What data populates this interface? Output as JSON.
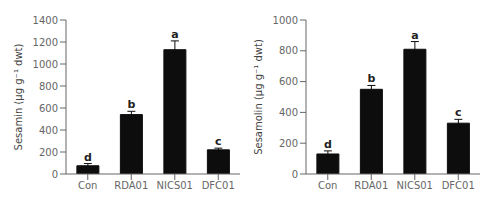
{
  "chart_data": [
    {
      "type": "bar",
      "categories": [
        "Con",
        "RDA01",
        "NICS01",
        "DFC01"
      ],
      "values": [
        75,
        540,
        1130,
        220
      ],
      "errors": [
        20,
        30,
        80,
        15
      ],
      "annotations": [
        "d",
        "b",
        "a",
        "c"
      ],
      "ylabel": "Sesamin (µg g⁻¹ dwt)",
      "ylim": [
        0,
        1400
      ],
      "yticks": [
        0,
        200,
        400,
        600,
        800,
        1000,
        1200,
        1400
      ],
      "color": "#0d0d0d",
      "grid": false
    },
    {
      "type": "bar",
      "categories": [
        "Con",
        "RDA01",
        "NICS01",
        "DFC01"
      ],
      "values": [
        130,
        550,
        810,
        330
      ],
      "errors": [
        20,
        25,
        50,
        25
      ],
      "annotations": [
        "d",
        "b",
        "a",
        "c"
      ],
      "ylabel": "Sesamolin (µg g⁻¹ dwt)",
      "ylim": [
        0,
        1000
      ],
      "yticks": [
        0,
        200,
        400,
        600,
        800,
        1000
      ],
      "color": "#0d0d0d",
      "grid": false
    }
  ]
}
